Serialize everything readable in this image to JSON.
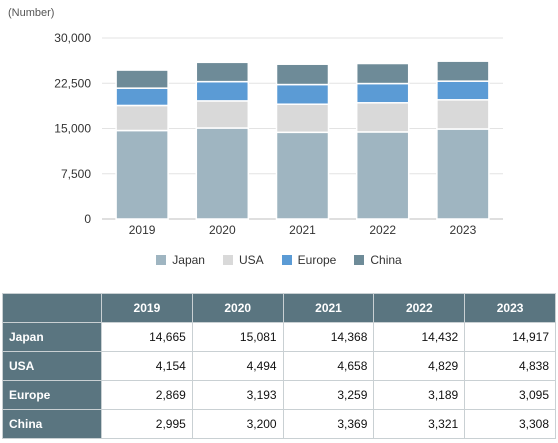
{
  "chart_data": {
    "type": "bar",
    "stacked": true,
    "unit_label": "(Number)",
    "categories": [
      "2019",
      "2020",
      "2021",
      "2022",
      "2023"
    ],
    "series": [
      {
        "name": "Japan",
        "color": "#9fb5c1",
        "values": [
          14665,
          15081,
          14368,
          14432,
          14917
        ]
      },
      {
        "name": "USA",
        "color": "#d9d9d9",
        "values": [
          4154,
          4494,
          4658,
          4829,
          4838
        ]
      },
      {
        "name": "Europe",
        "color": "#5b9bd5",
        "values": [
          2869,
          3193,
          3259,
          3189,
          3095
        ]
      },
      {
        "name": "China",
        "color": "#6e8b98",
        "values": [
          2995,
          3200,
          3369,
          3321,
          3308
        ]
      }
    ],
    "yticks": [
      "0",
      "7,500",
      "15,000",
      "22,500",
      "30,000"
    ],
    "ylim": [
      0,
      30000
    ],
    "grid": true,
    "legend": "bottom"
  },
  "table": {
    "headers": [
      "",
      "2019",
      "2020",
      "2021",
      "2022",
      "2023"
    ],
    "rows": [
      {
        "label": "Japan",
        "cells": [
          "14,665",
          "15,081",
          "14,368",
          "14,432",
          "14,917"
        ]
      },
      {
        "label": "USA",
        "cells": [
          "4,154",
          "4,494",
          "4,658",
          "4,829",
          "4,838"
        ]
      },
      {
        "label": "Europe",
        "cells": [
          "2,869",
          "3,193",
          "3,259",
          "3,189",
          "3,095"
        ]
      },
      {
        "label": "China",
        "cells": [
          "2,995",
          "3,200",
          "3,369",
          "3,321",
          "3,308"
        ]
      }
    ]
  }
}
